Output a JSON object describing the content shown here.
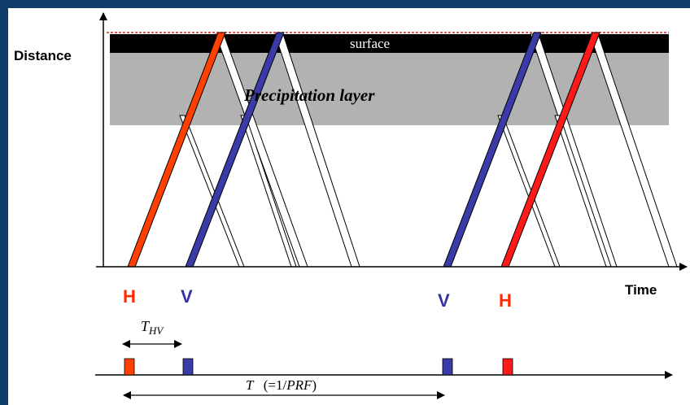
{
  "labels": {
    "y_axis": "Distance",
    "x_axis": "Time",
    "surface": "surface",
    "precip_layer": "Precipitation layer",
    "pulses": [
      "H",
      "V",
      "V",
      "H"
    ],
    "t_hv_main": "T",
    "t_hv_sub": "HV",
    "period_T": "T",
    "period_expr": "(=1/",
    "period_prf": "PRF",
    "period_close": ")"
  },
  "colors": {
    "background": "#0f3d6b",
    "h_pulse": "#ff2a00",
    "v_pulse": "#3333a0",
    "surface": "#000000",
    "precip_layer": "#b2b2b2",
    "axis": "#000000"
  }
}
